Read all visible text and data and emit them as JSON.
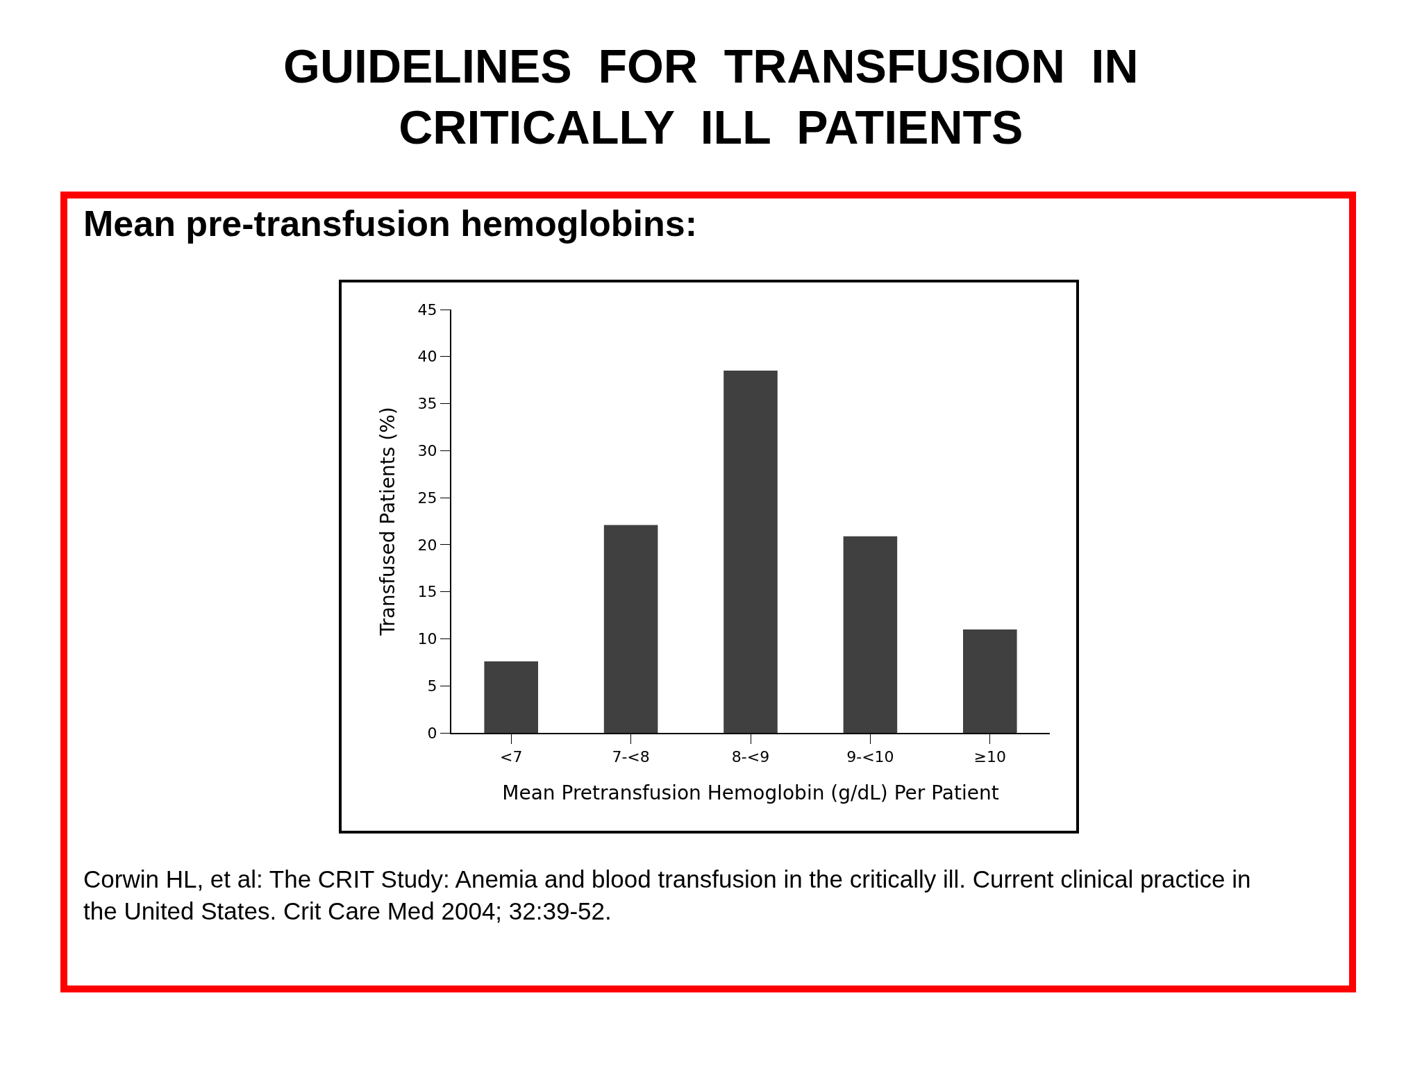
{
  "chart_data": {
    "type": "bar",
    "title": "GUIDELINES  FOR  TRANSFUSION  IN\nCRITICALLY  ILL  PATIENTS",
    "subtitle": "Mean pre-transfusion hemoglobins:",
    "xlabel": "Mean Pretransfusion Hemoglobin (g/dL) Per Patient",
    "ylabel": "Transfused Patients (%)",
    "categories": [
      "<7",
      "7-<8",
      "8-<9",
      "9-<10",
      "≥10"
    ],
    "values": [
      7.6,
      22.1,
      38.5,
      20.9,
      11.0
    ],
    "color": "#404040",
    "ylim": [
      0,
      45
    ],
    "yticks": [
      0,
      5,
      10,
      15,
      20,
      25,
      30,
      35,
      40,
      45
    ],
    "annotations": [
      "Corwin HL, et al: The CRIT Study: Anemia and blood transfusion in the critically ill. Current clinical practice in\nthe United States. Crit Care Med 2004; 32:39-52."
    ]
  }
}
